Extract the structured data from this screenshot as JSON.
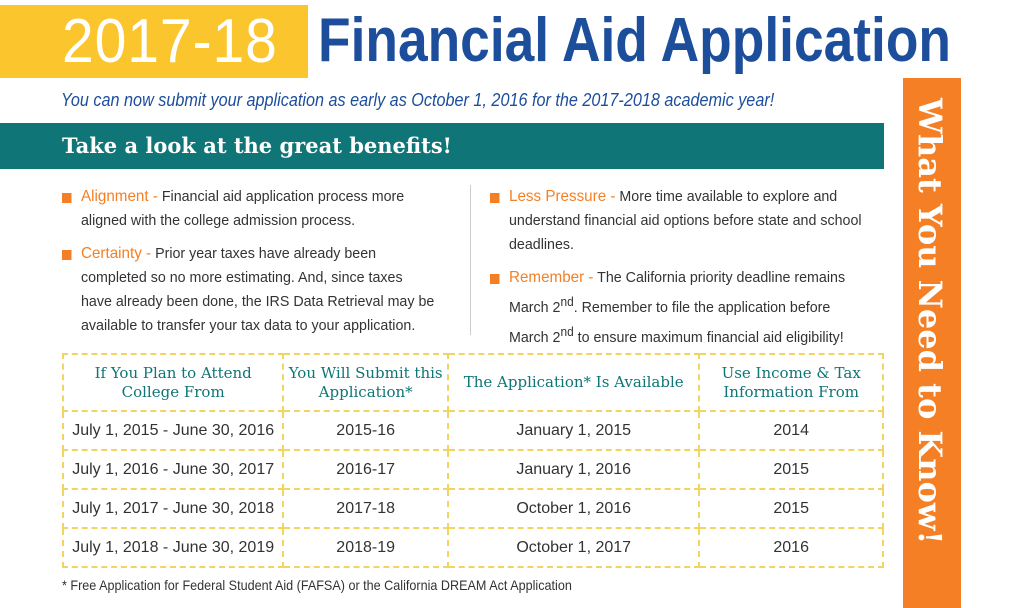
{
  "header": {
    "year": "2017-18",
    "title": "Financial Aid Application",
    "subtitle": "You can now submit your application as early as October 1, 2016 for the 2017-2018 academic year!"
  },
  "banner": "Take a look at the great benefits!",
  "side_banner": "What You Need to Know!",
  "benefits_left": [
    {
      "label": "Alignment -",
      "text": " Financial aid application process more aligned with the college admission process."
    },
    {
      "label": "Certainty -",
      "text": " Prior year taxes have already been completed so no more estimating.  And, since taxes have already been done, the IRS Data Retrieval may be available to transfer your tax data to your application."
    }
  ],
  "benefits_right": [
    {
      "label": "Less Pressure -",
      "text": " More time available to explore and understand financial aid options before state and school deadlines."
    },
    {
      "label": "Remember -",
      "text_a": " The California priority deadline remains March 2",
      "sup": "nd",
      "text_b": ". Remember to file the application before March 2",
      "text_c": " to ensure maximum financial aid eligibility!"
    }
  ],
  "table": {
    "headers": [
      "If You Plan to Attend College From",
      "You Will Submit this Application*",
      "The Application* Is Available",
      "Use Income & Tax Information From"
    ],
    "rows": [
      [
        "July 1, 2015 - June 30, 2016",
        "2015-16",
        "January 1, 2015",
        "2014"
      ],
      [
        "July 1, 2016 - June 30, 2017",
        "2016-17",
        "January 1, 2016",
        "2015"
      ],
      [
        "July 1, 2017  - June 30, 2018",
        "2017-18",
        "October 1, 2016",
        "2015"
      ],
      [
        "July 1, 2018 - June 30, 2019",
        "2018-19",
        "October 1, 2017",
        "2016"
      ]
    ]
  },
  "footnote": "* Free Application for Federal Student Aid (FAFSA) or the California DREAM Act Application",
  "colors": {
    "yellow": "#fbc52e",
    "blue": "#1c4e9c",
    "teal": "#0f7577",
    "orange": "#f47f24",
    "dash": "#f2d560"
  }
}
